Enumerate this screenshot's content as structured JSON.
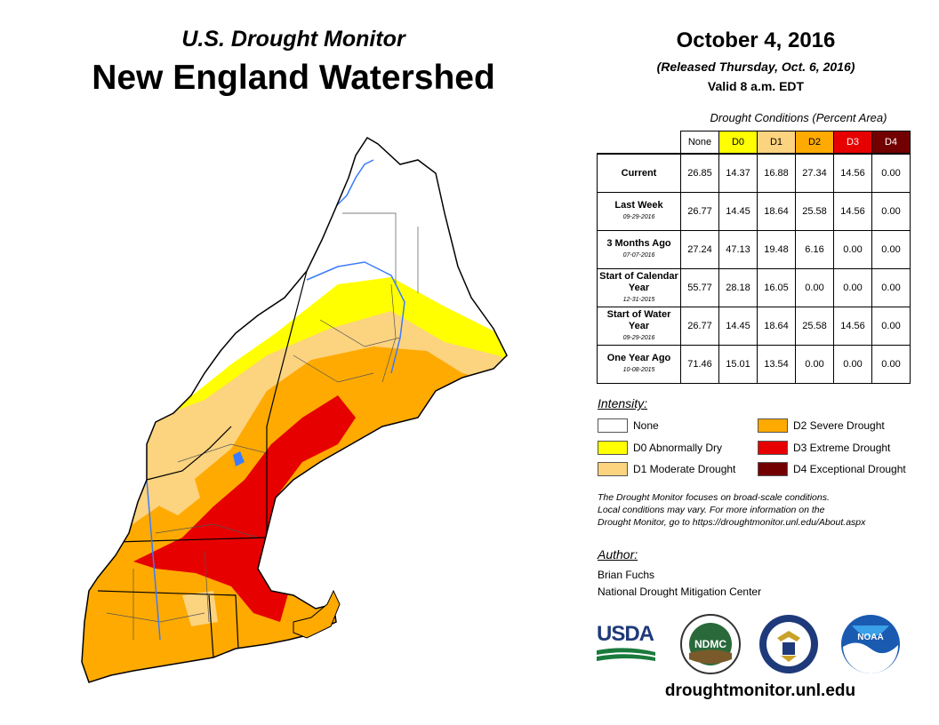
{
  "header": {
    "title_line1": "U.S. Drought Monitor",
    "title_line2": "New England Watershed",
    "date": "October 4, 2016",
    "released": "(Released Thursday, Oct. 6, 2016)",
    "valid": "Valid 8 a.m. EDT"
  },
  "table": {
    "caption": "Drought Conditions (Percent Area)",
    "columns": [
      {
        "label": "None",
        "color": "#ffffff"
      },
      {
        "label": "D0",
        "color": "#ffff00"
      },
      {
        "label": "D1",
        "color": "#fcd37f"
      },
      {
        "label": "D2",
        "color": "#ffaa00"
      },
      {
        "label": "D3",
        "color": "#e60000"
      },
      {
        "label": "D4",
        "color": "#730000"
      }
    ],
    "rows": [
      {
        "label": "Current",
        "date": "",
        "values": [
          "26.85",
          "14.37",
          "16.88",
          "27.34",
          "14.56",
          "0.00"
        ]
      },
      {
        "label": "Last Week",
        "date": "09-29-2016",
        "values": [
          "26.77",
          "14.45",
          "18.64",
          "25.58",
          "14.56",
          "0.00"
        ]
      },
      {
        "label": "3 Months Ago",
        "date": "07-07-2016",
        "values": [
          "27.24",
          "47.13",
          "19.48",
          "6.16",
          "0.00",
          "0.00"
        ]
      },
      {
        "label": "Start of Calendar Year",
        "date": "12-31-2015",
        "values": [
          "55.77",
          "28.18",
          "16.05",
          "0.00",
          "0.00",
          "0.00"
        ]
      },
      {
        "label": "Start of Water Year",
        "date": "09-29-2016",
        "values": [
          "26.77",
          "14.45",
          "18.64",
          "25.58",
          "14.56",
          "0.00"
        ]
      },
      {
        "label": "One Year Ago",
        "date": "10-08-2015",
        "values": [
          "71.46",
          "15.01",
          "13.54",
          "0.00",
          "0.00",
          "0.00"
        ]
      }
    ]
  },
  "legend": {
    "heading": "Intensity:",
    "items": [
      {
        "label": "None",
        "color": "#ffffff"
      },
      {
        "label": "D0 Abnormally Dry",
        "color": "#ffff00"
      },
      {
        "label": "D1 Moderate Drought",
        "color": "#fcd37f"
      },
      {
        "label": "D2 Severe Drought",
        "color": "#ffaa00"
      },
      {
        "label": "D3 Extreme Drought",
        "color": "#e60000"
      },
      {
        "label": "D4 Exceptional Drought",
        "color": "#730000"
      }
    ]
  },
  "note": {
    "line1": "The Drought Monitor focuses on broad-scale conditions.",
    "line2": "Local conditions may vary. For more information on the",
    "line3": "Drought Monitor, go to https://droughtmonitor.unl.edu/About.aspx"
  },
  "author": {
    "heading": "Author:",
    "name": "Brian Fuchs",
    "org": "National Drought Mitigation Center"
  },
  "logos": {
    "usda": "USDA",
    "ndmc": "NDMC",
    "noaa": "NOAA"
  },
  "footer_url": "droughtmonitor.unl.edu"
}
